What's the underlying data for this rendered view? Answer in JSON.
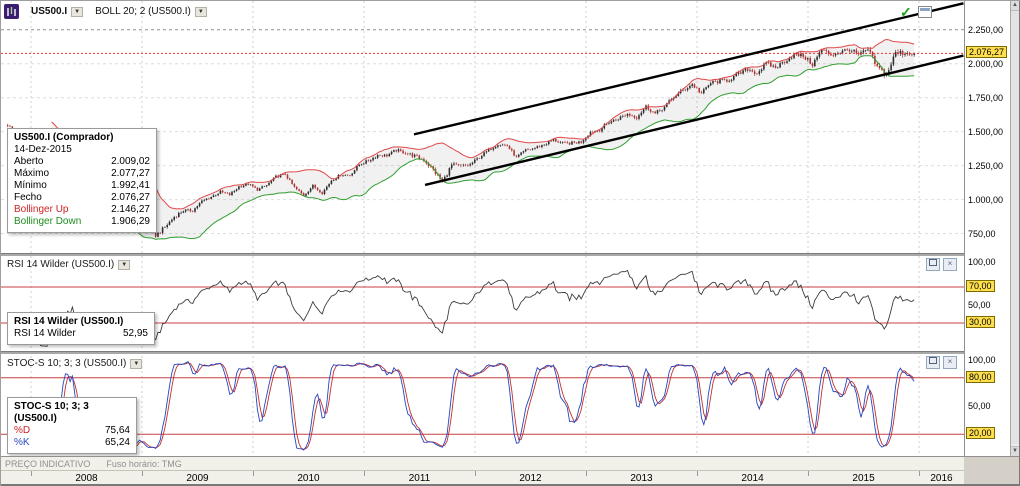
{
  "icons": {
    "dropdown": "▼",
    "confirm": "✓",
    "close": "×",
    "scroll_up": "▲",
    "scroll_down": "▼"
  },
  "toolbar": {
    "instrument": "US500.I",
    "indicator": "BOLL 20; 2 (US500.I)"
  },
  "main_tooltip": {
    "title": "US500.I (Comprador)",
    "date": "14-Dez-2015",
    "rows": [
      {
        "label": "Aberto",
        "value": "2.009,02"
      },
      {
        "label": "Máximo",
        "value": "2.077,27"
      },
      {
        "label": "Mínimo",
        "value": "1.992,41"
      },
      {
        "label": "Fecho",
        "value": "2.076,27"
      },
      {
        "label": "Bollinger Up",
        "value": "2.146,27",
        "label_color": "#cc2222"
      },
      {
        "label": "Bollinger Down",
        "value": "1.906,29",
        "label_color": "#1e8c1e"
      }
    ]
  },
  "rsi_panel": {
    "header": "RSI 14 Wilder (US500.I)",
    "tooltip_title": "RSI 14 Wilder (US500.I)",
    "tooltip_rows": [
      {
        "label": "RSI 14 Wilder",
        "value": "52,95"
      }
    ],
    "axis": [
      {
        "label": "100,00",
        "v": 100,
        "badge": false
      },
      {
        "label": "70,00",
        "v": 70,
        "badge": true
      },
      {
        "label": "50,00",
        "v": 50,
        "badge": false
      },
      {
        "label": "30,00",
        "v": 30,
        "badge": true
      }
    ],
    "levels": [
      70,
      30
    ]
  },
  "stoch_panel": {
    "header": "STOC-S 10; 3; 3 (US500.I)",
    "tooltip_title": "STOC-S 10; 3; 3 (US500.I)",
    "tooltip_rows": [
      {
        "label": "%D",
        "value": "75,64",
        "label_color": "#cc2222"
      },
      {
        "label": "%K",
        "value": "65,24",
        "label_color": "#2546c0"
      }
    ],
    "axis": [
      {
        "label": "100,00",
        "v": 100,
        "badge": false
      },
      {
        "label": "80,00",
        "v": 80,
        "badge": true
      },
      {
        "label": "50,00",
        "v": 50,
        "badge": false
      },
      {
        "label": "20,00",
        "v": 20,
        "badge": true
      }
    ],
    "levels": [
      80,
      20
    ]
  },
  "price_axis": {
    "labels": [
      {
        "label": "2.250,00",
        "p": 2250
      },
      {
        "label": "2.000,00",
        "p": 2000
      },
      {
        "label": "1.750,00",
        "p": 1750
      },
      {
        "label": "1.500,00",
        "p": 1500
      },
      {
        "label": "1.250,00",
        "p": 1250
      },
      {
        "label": "1.000,00",
        "p": 1000
      },
      {
        "label": "750,00",
        "p": 750
      }
    ],
    "badge": {
      "label": "2.076,27"
    }
  },
  "status_bar": {
    "left": "PREÇO INDICATIVO",
    "timezone": "Fuso horário: TMG"
  },
  "time_axis": {
    "years": [
      "2008",
      "2009",
      "2010",
      "2011",
      "2012",
      "2013",
      "2014",
      "2015",
      "2016"
    ]
  },
  "chart_data": {
    "type": "candlestick",
    "instrument": "US500.I",
    "indicators": [
      "BOLL 20; 2",
      "RSI 14 Wilder",
      "STOC-S 10; 3; 3"
    ],
    "time_range": [
      2007.73,
      2016.405
    ],
    "price_range_visible": [
      614,
      2462
    ],
    "price_ticks": [
      2250,
      2000,
      1750,
      1500,
      1250,
      1000,
      750
    ],
    "start_time": 2007.79,
    "monthly_closes": [
      1549,
      1481,
      1468,
      1378,
      1330,
      1322,
      1385,
      1400,
      1280,
      1267,
      1282,
      1166,
      968,
      896,
      903,
      825,
      735,
      797,
      872,
      919,
      919,
      987,
      1020,
      1057,
      1036,
      1095,
      1115,
      1073,
      1104,
      1169,
      1186,
      1089,
      1030,
      1101,
      1049,
      1141,
      1183,
      1180,
      1257,
      1286,
      1327,
      1325,
      1363,
      1345,
      1320,
      1292,
      1218,
      1131,
      1253,
      1246,
      1257,
      1312,
      1365,
      1408,
      1397,
      1310,
      1362,
      1379,
      1406,
      1440,
      1412,
      1416,
      1426,
      1498,
      1514,
      1569,
      1597,
      1630,
      1606,
      1685,
      1632,
      1681,
      1756,
      1805,
      1848,
      1782,
      1859,
      1872,
      1883,
      1923,
      1960,
      1930,
      2003,
      1972,
      2018,
      2067,
      2058,
      1994,
      2104,
      2067,
      2085,
      2107,
      2063,
      2103,
      1972,
      1920,
      2079,
      2080,
      2076.27
    ],
    "current_price": 2076.27,
    "ohlc_last": {
      "open": 2009.02,
      "high": 2077.27,
      "low": 1992.41,
      "close": 2076.27
    },
    "bollinger": {
      "period": 20,
      "stddev": 2,
      "last_upper": 2146.27,
      "last_lower": 1906.29
    },
    "rsi": {
      "period": 14,
      "last": 52.95
    },
    "stochastic": {
      "periods": [
        10,
        3,
        3
      ],
      "last_d": 75.64,
      "last_k": 65.24
    },
    "channel": {
      "upper": {
        "t1": 2011.45,
        "p1": 1480,
        "t2": 2016.4,
        "p2": 2445
      },
      "lower": {
        "t1": 2011.55,
        "p1": 1108,
        "t2": 2016.4,
        "p2": 2060
      }
    }
  }
}
